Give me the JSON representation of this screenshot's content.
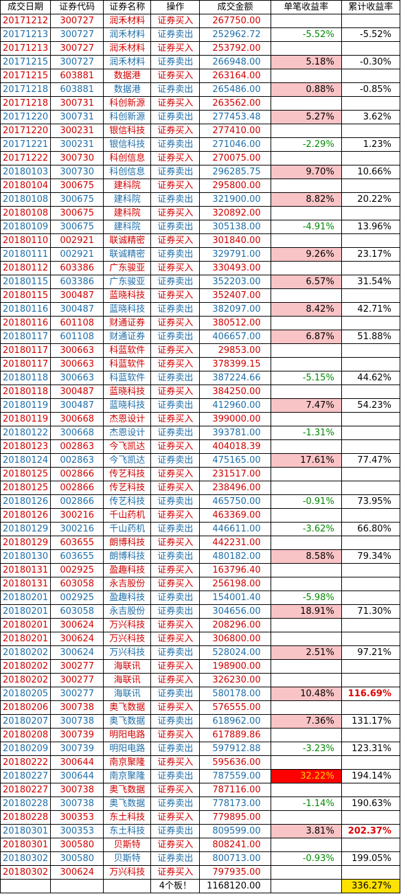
{
  "headers": [
    "成交日期",
    "证券代码",
    "证券名称",
    "操作",
    "成交金额",
    "单笔收益率",
    "累计收益率"
  ],
  "rows": [
    {
      "date": "20171212",
      "code": "300727",
      "name": "润禾材料",
      "op": "证券买入",
      "amount": "267750.00",
      "single": "",
      "cum": "",
      "type": "buy",
      "sstyle": "",
      "cstyle": ""
    },
    {
      "date": "20171213",
      "code": "300727",
      "name": "润禾材料",
      "op": "证券卖出",
      "amount": "252962.72",
      "single": "-5.52%",
      "cum": "-5.52%",
      "type": "sell",
      "sstyle": "neg",
      "cstyle": ""
    },
    {
      "date": "20171213",
      "code": "300727",
      "name": "润禾材料",
      "op": "证券买入",
      "amount": "253792.00",
      "single": "",
      "cum": "",
      "type": "buy",
      "sstyle": "",
      "cstyle": ""
    },
    {
      "date": "20171215",
      "code": "300727",
      "name": "润禾材料",
      "op": "证券卖出",
      "amount": "266948.00",
      "single": "5.18%",
      "cum": "-0.30%",
      "type": "sell",
      "sstyle": "pos",
      "cstyle": ""
    },
    {
      "date": "20171215",
      "code": "603881",
      "name": "数据港",
      "op": "证券买入",
      "amount": "263164.00",
      "single": "",
      "cum": "",
      "type": "buy",
      "sstyle": "",
      "cstyle": ""
    },
    {
      "date": "20171218",
      "code": "603881",
      "name": "数据港",
      "op": "证券卖出",
      "amount": "265486.00",
      "single": "0.88%",
      "cum": "-0.85%",
      "type": "sell",
      "sstyle": "pos",
      "cstyle": ""
    },
    {
      "date": "20171218",
      "code": "300731",
      "name": "科创新源",
      "op": "证券买入",
      "amount": "263562.00",
      "single": "",
      "cum": "",
      "type": "buy",
      "sstyle": "",
      "cstyle": ""
    },
    {
      "date": "20171220",
      "code": "300731",
      "name": "科创新源",
      "op": "证券卖出",
      "amount": "277453.48",
      "single": "5.27%",
      "cum": "3.62%",
      "type": "sell",
      "sstyle": "pos",
      "cstyle": ""
    },
    {
      "date": "20171220",
      "code": "300231",
      "name": "银信科技",
      "op": "证券买入",
      "amount": "277410.00",
      "single": "",
      "cum": "",
      "type": "buy",
      "sstyle": "",
      "cstyle": ""
    },
    {
      "date": "20171221",
      "code": "300231",
      "name": "银信科技",
      "op": "证券卖出",
      "amount": "271046.00",
      "single": "-2.29%",
      "cum": "1.23%",
      "type": "sell",
      "sstyle": "neg",
      "cstyle": ""
    },
    {
      "date": "20171222",
      "code": "300730",
      "name": "科创信息",
      "op": "证券买入",
      "amount": "270075.00",
      "single": "",
      "cum": "",
      "type": "buy",
      "sstyle": "",
      "cstyle": ""
    },
    {
      "date": "20180103",
      "code": "300730",
      "name": "科创信息",
      "op": "证券卖出",
      "amount": "296285.75",
      "single": "9.70%",
      "cum": "10.66%",
      "type": "sell",
      "sstyle": "pos",
      "cstyle": ""
    },
    {
      "date": "20180104",
      "code": "300675",
      "name": "建科院",
      "op": "证券买入",
      "amount": "295800.00",
      "single": "",
      "cum": "",
      "type": "buy",
      "sstyle": "",
      "cstyle": ""
    },
    {
      "date": "20180108",
      "code": "300675",
      "name": "建科院",
      "op": "证券卖出",
      "amount": "321900.00",
      "single": "8.82%",
      "cum": "20.22%",
      "type": "sell",
      "sstyle": "pos",
      "cstyle": ""
    },
    {
      "date": "20180108",
      "code": "300675",
      "name": "建科院",
      "op": "证券买入",
      "amount": "320892.00",
      "single": "",
      "cum": "",
      "type": "buy",
      "sstyle": "",
      "cstyle": ""
    },
    {
      "date": "20180109",
      "code": "300675",
      "name": "建科院",
      "op": "证券卖出",
      "amount": "305138.00",
      "single": "-4.91%",
      "cum": "13.96%",
      "type": "sell",
      "sstyle": "neg",
      "cstyle": ""
    },
    {
      "date": "20180110",
      "code": "002921",
      "name": "联诚精密",
      "op": "证券买入",
      "amount": "301840.00",
      "single": "",
      "cum": "",
      "type": "buy",
      "sstyle": "",
      "cstyle": ""
    },
    {
      "date": "20180111",
      "code": "002921",
      "name": "联诚精密",
      "op": "证券卖出",
      "amount": "329791.00",
      "single": "9.26%",
      "cum": "23.17%",
      "type": "sell",
      "sstyle": "pos",
      "cstyle": ""
    },
    {
      "date": "20180112",
      "code": "603386",
      "name": "广东骏亚",
      "op": "证券买入",
      "amount": "330493.00",
      "single": "",
      "cum": "",
      "type": "buy",
      "sstyle": "",
      "cstyle": ""
    },
    {
      "date": "20180115",
      "code": "603386",
      "name": "广东骏亚",
      "op": "证券卖出",
      "amount": "352203.00",
      "single": "6.57%",
      "cum": "31.54%",
      "type": "sell",
      "sstyle": "pos",
      "cstyle": ""
    },
    {
      "date": "20180115",
      "code": "300487",
      "name": "蓝晓科技",
      "op": "证券买入",
      "amount": "352407.00",
      "single": "",
      "cum": "",
      "type": "buy",
      "sstyle": "",
      "cstyle": ""
    },
    {
      "date": "20180116",
      "code": "300487",
      "name": "蓝晓科技",
      "op": "证券卖出",
      "amount": "382097.00",
      "single": "8.42%",
      "cum": "42.71%",
      "type": "sell",
      "sstyle": "pos",
      "cstyle": ""
    },
    {
      "date": "20180116",
      "code": "601108",
      "name": "财通证券",
      "op": "证券买入",
      "amount": "380512.00",
      "single": "",
      "cum": "",
      "type": "buy",
      "sstyle": "",
      "cstyle": ""
    },
    {
      "date": "20180117",
      "code": "601108",
      "name": "财通证券",
      "op": "证券卖出",
      "amount": "406657.00",
      "single": "6.87%",
      "cum": "51.88%",
      "type": "sell",
      "sstyle": "pos",
      "cstyle": ""
    },
    {
      "date": "20180117",
      "code": "300663",
      "name": "科蓝软件",
      "op": "证券买入",
      "amount": "29853.00",
      "single": "",
      "cum": "",
      "type": "buy",
      "sstyle": "",
      "cstyle": ""
    },
    {
      "date": "20180117",
      "code": "300663",
      "name": "科蓝软件",
      "op": "证券买入",
      "amount": "378399.15",
      "single": "",
      "cum": "",
      "type": "buy",
      "sstyle": "",
      "cstyle": ""
    },
    {
      "date": "20180118",
      "code": "300663",
      "name": "科蓝软件",
      "op": "证券卖出",
      "amount": "387224.66",
      "single": "-5.15%",
      "cum": "44.62%",
      "type": "sell",
      "sstyle": "neg",
      "cstyle": ""
    },
    {
      "date": "20180118",
      "code": "300487",
      "name": "蓝晓科技",
      "op": "证券买入",
      "amount": "384250.00",
      "single": "",
      "cum": "",
      "type": "buy",
      "sstyle": "",
      "cstyle": ""
    },
    {
      "date": "20180119",
      "code": "300487",
      "name": "蓝晓科技",
      "op": "证券卖出",
      "amount": "412960.00",
      "single": "7.47%",
      "cum": "54.23%",
      "type": "sell",
      "sstyle": "pos",
      "cstyle": ""
    },
    {
      "date": "20180119",
      "code": "300668",
      "name": "杰恩设计",
      "op": "证券买入",
      "amount": "399000.00",
      "single": "",
      "cum": "",
      "type": "buy",
      "sstyle": "",
      "cstyle": ""
    },
    {
      "date": "20180122",
      "code": "300668",
      "name": "杰恩设计",
      "op": "证券卖出",
      "amount": "393781.00",
      "single": "-1.31%",
      "cum": "",
      "type": "sell",
      "sstyle": "neg",
      "cstyle": ""
    },
    {
      "date": "20180123",
      "code": "002863",
      "name": "今飞凯达",
      "op": "证券买入",
      "amount": "404018.39",
      "single": "",
      "cum": "",
      "type": "buy",
      "sstyle": "",
      "cstyle": ""
    },
    {
      "date": "20180124",
      "code": "002863",
      "name": "今飞凯达",
      "op": "证券卖出",
      "amount": "475165.00",
      "single": "17.61%",
      "cum": "77.47%",
      "type": "sell",
      "sstyle": "pos",
      "cstyle": ""
    },
    {
      "date": "20180125",
      "code": "002866",
      "name": "传艺科技",
      "op": "证券买入",
      "amount": "231517.00",
      "single": "",
      "cum": "",
      "type": "buy",
      "sstyle": "",
      "cstyle": ""
    },
    {
      "date": "20180125",
      "code": "002866",
      "name": "传艺科技",
      "op": "证券买入",
      "amount": "238496.00",
      "single": "",
      "cum": "",
      "type": "buy",
      "sstyle": "",
      "cstyle": ""
    },
    {
      "date": "20180126",
      "code": "002866",
      "name": "传艺科技",
      "op": "证券卖出",
      "amount": "465750.00",
      "single": "-0.91%",
      "cum": "73.95%",
      "type": "sell",
      "sstyle": "neg",
      "cstyle": ""
    },
    {
      "date": "20180126",
      "code": "300216",
      "name": "千山药机",
      "op": "证券买入",
      "amount": "463369.00",
      "single": "",
      "cum": "",
      "type": "buy",
      "sstyle": "",
      "cstyle": ""
    },
    {
      "date": "20180129",
      "code": "300216",
      "name": "千山药机",
      "op": "证券卖出",
      "amount": "446611.00",
      "single": "-3.62%",
      "cum": "66.80%",
      "type": "sell",
      "sstyle": "neg",
      "cstyle": ""
    },
    {
      "date": "20180129",
      "code": "603655",
      "name": "朗博科技",
      "op": "证券买入",
      "amount": "442231.00",
      "single": "",
      "cum": "",
      "type": "buy",
      "sstyle": "",
      "cstyle": ""
    },
    {
      "date": "20180130",
      "code": "603655",
      "name": "朗博科技",
      "op": "证券卖出",
      "amount": "480182.00",
      "single": "8.58%",
      "cum": "79.34%",
      "type": "sell",
      "sstyle": "pos",
      "cstyle": ""
    },
    {
      "date": "20180131",
      "code": "002925",
      "name": "盈趣科技",
      "op": "证券买入",
      "amount": "163796.40",
      "single": "",
      "cum": "",
      "type": "buy",
      "sstyle": "",
      "cstyle": ""
    },
    {
      "date": "20180131",
      "code": "603058",
      "name": "永吉股份",
      "op": "证券买入",
      "amount": "256198.00",
      "single": "",
      "cum": "",
      "type": "buy",
      "sstyle": "",
      "cstyle": ""
    },
    {
      "date": "20180201",
      "code": "002925",
      "name": "盈趣科技",
      "op": "证券卖出",
      "amount": "154001.40",
      "single": "-5.98%",
      "cum": "",
      "type": "sell",
      "sstyle": "neg",
      "cstyle": ""
    },
    {
      "date": "20180201",
      "code": "603058",
      "name": "永吉股份",
      "op": "证券卖出",
      "amount": "304656.00",
      "single": "18.91%",
      "cum": "71.30%",
      "type": "sell",
      "sstyle": "pos",
      "cstyle": ""
    },
    {
      "date": "20180201",
      "code": "300624",
      "name": "万兴科技",
      "op": "证券买入",
      "amount": "208296.00",
      "single": "",
      "cum": "",
      "type": "buy",
      "sstyle": "",
      "cstyle": ""
    },
    {
      "date": "20180201",
      "code": "300624",
      "name": "万兴科技",
      "op": "证券买入",
      "amount": "306800.00",
      "single": "",
      "cum": "",
      "type": "buy",
      "sstyle": "",
      "cstyle": ""
    },
    {
      "date": "20180202",
      "code": "300624",
      "name": "万兴科技",
      "op": "证券卖出",
      "amount": "528024.00",
      "single": "2.51%",
      "cum": "97.21%",
      "type": "sell",
      "sstyle": "pos",
      "cstyle": ""
    },
    {
      "date": "20180202",
      "code": "300277",
      "name": "海联讯",
      "op": "证券买入",
      "amount": "198900.00",
      "single": "",
      "cum": "",
      "type": "buy",
      "sstyle": "",
      "cstyle": ""
    },
    {
      "date": "20180202",
      "code": "300277",
      "name": "海联讯",
      "op": "证券买入",
      "amount": "326230.00",
      "single": "",
      "cum": "",
      "type": "buy",
      "sstyle": "",
      "cstyle": ""
    },
    {
      "date": "20180205",
      "code": "300277",
      "name": "海联讯",
      "op": "证券卖出",
      "amount": "580178.00",
      "single": "10.48%",
      "cum": "116.69%",
      "type": "sell",
      "sstyle": "pos",
      "cstyle": "bold"
    },
    {
      "date": "20180206",
      "code": "300738",
      "name": "奥飞数据",
      "op": "证券买入",
      "amount": "576555.00",
      "single": "",
      "cum": "",
      "type": "buy",
      "sstyle": "",
      "cstyle": ""
    },
    {
      "date": "20180207",
      "code": "300738",
      "name": "奥飞数据",
      "op": "证券卖出",
      "amount": "618962.00",
      "single": "7.36%",
      "cum": "131.17%",
      "type": "sell",
      "sstyle": "pos",
      "cstyle": ""
    },
    {
      "date": "20180208",
      "code": "300739",
      "name": "明阳电路",
      "op": "证券买入",
      "amount": "617889.86",
      "single": "",
      "cum": "",
      "type": "buy",
      "sstyle": "",
      "cstyle": ""
    },
    {
      "date": "20180209",
      "code": "300739",
      "name": "明阳电路",
      "op": "证券卖出",
      "amount": "597912.88",
      "single": "-3.23%",
      "cum": "123.31%",
      "type": "sell",
      "sstyle": "neg",
      "cstyle": ""
    },
    {
      "date": "20180222",
      "code": "300644",
      "name": "南京聚隆",
      "op": "证券买入",
      "amount": "595636.00",
      "single": "",
      "cum": "",
      "type": "buy",
      "sstyle": "",
      "cstyle": ""
    },
    {
      "date": "20180227",
      "code": "300644",
      "name": "南京聚隆",
      "op": "证券卖出",
      "amount": "787559.00",
      "single": "32.22%",
      "cum": "194.14%",
      "type": "sell",
      "sstyle": "big",
      "cstyle": ""
    },
    {
      "date": "20180227",
      "code": "300738",
      "name": "奥飞数据",
      "op": "证券买入",
      "amount": "787116.00",
      "single": "",
      "cum": "",
      "type": "buy",
      "sstyle": "",
      "cstyle": ""
    },
    {
      "date": "20180228",
      "code": "300738",
      "name": "奥飞数据",
      "op": "证券卖出",
      "amount": "778173.00",
      "single": "-1.14%",
      "cum": "190.63%",
      "type": "sell",
      "sstyle": "neg",
      "cstyle": ""
    },
    {
      "date": "20180228",
      "code": "300353",
      "name": "东土科技",
      "op": "证券买入",
      "amount": "779895.00",
      "single": "",
      "cum": "",
      "type": "buy",
      "sstyle": "",
      "cstyle": ""
    },
    {
      "date": "20180301",
      "code": "300353",
      "name": "东土科技",
      "op": "证券卖出",
      "amount": "809599.00",
      "single": "3.81%",
      "cum": "202.37%",
      "type": "sell",
      "sstyle": "pos",
      "cstyle": "bold"
    },
    {
      "date": "20180301",
      "code": "300580",
      "name": "贝斯特",
      "op": "证券买入",
      "amount": "808241.00",
      "single": "",
      "cum": "",
      "type": "buy",
      "sstyle": "",
      "cstyle": ""
    },
    {
      "date": "20180302",
      "code": "300580",
      "name": "贝斯特",
      "op": "证券卖出",
      "amount": "800713.00",
      "single": "-0.93%",
      "cum": "199.05%",
      "type": "sell",
      "sstyle": "neg",
      "cstyle": ""
    },
    {
      "date": "20180302",
      "code": "300624",
      "name": "万兴科技",
      "op": "证券买入",
      "amount": "797935.00",
      "single": "",
      "cum": "",
      "type": "buy",
      "sstyle": "",
      "cstyle": ""
    }
  ],
  "total": {
    "op": "4个板！",
    "amount": "1168120.00",
    "cum": "336.27%"
  },
  "colors": {
    "buy_text": "#d20000",
    "sell_text": "#1f6ea8",
    "positive_fill": "#f9c4c6",
    "negative_text": "#008a00",
    "highlight_fill": "#ff0000",
    "highlight_text": "#ffd400",
    "total_fill": "#ffe100"
  }
}
